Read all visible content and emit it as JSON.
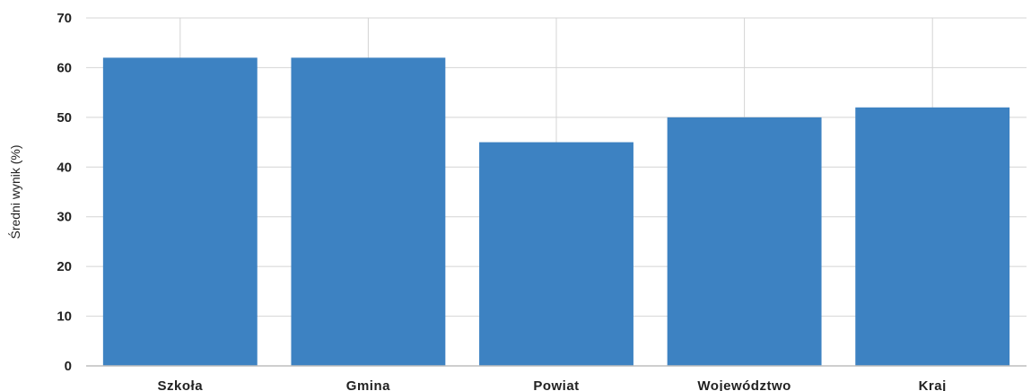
{
  "chart_data": {
    "type": "bar",
    "title": "",
    "xlabel": "",
    "ylabel": "Średni wynik (%)",
    "categories": [
      "Szkoła",
      "Gmina",
      "Powiat",
      "Województwo",
      "Kraj"
    ],
    "values": [
      62,
      62,
      45,
      50,
      52
    ],
    "ylim": [
      0,
      70
    ],
    "yticks": [
      0,
      10,
      20,
      30,
      40,
      50,
      60,
      70
    ],
    "grid": true,
    "legend": "none",
    "bar_color": "#3d82c2"
  }
}
